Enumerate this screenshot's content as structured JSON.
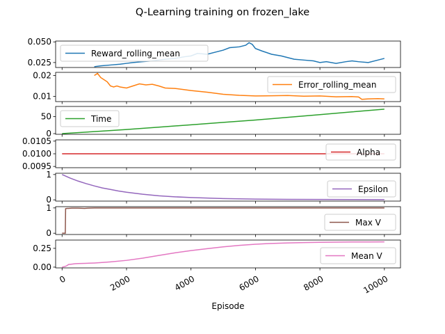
{
  "chart_data": {
    "type": "line",
    "title": "Q-Learning training on frozen_lake",
    "xlabel": "Episode",
    "xlim": [
      -200,
      10500
    ],
    "x_ticks": [
      "0",
      "2000",
      "4000",
      "6000",
      "8000",
      "10000"
    ],
    "x_tick_values": [
      0,
      2000,
      4000,
      6000,
      8000,
      10000
    ],
    "legend_placement": [
      "upper left",
      "upper right",
      "upper left",
      "upper right",
      "lower right",
      "lower right",
      "lower right"
    ],
    "panels": [
      {
        "name": "Reward_rolling_mean",
        "color": "#1f77b4",
        "ylim": [
          0.019,
          0.051
        ],
        "y_ticks": [
          "0.025",
          "0.050"
        ],
        "y_tick_values": [
          0.025,
          0.05
        ],
        "x": [
          1000,
          1200,
          1500,
          1800,
          2000,
          2200,
          2500,
          2800,
          3000,
          3200,
          3500,
          3800,
          4000,
          4200,
          4500,
          4800,
          5000,
          5200,
          5500,
          5700,
          5800,
          5900,
          6000,
          6200,
          6500,
          6800,
          7000,
          7200,
          7500,
          7800,
          8000,
          8200,
          8500,
          8800,
          9000,
          9200,
          9500,
          9800,
          10000
        ],
        "y": [
          0.02,
          0.021,
          0.022,
          0.023,
          0.024,
          0.025,
          0.026,
          0.027,
          0.028,
          0.029,
          0.03,
          0.032,
          0.033,
          0.036,
          0.035,
          0.038,
          0.04,
          0.043,
          0.044,
          0.046,
          0.049,
          0.047,
          0.042,
          0.039,
          0.035,
          0.033,
          0.031,
          0.029,
          0.028,
          0.027,
          0.025,
          0.026,
          0.024,
          0.026,
          0.027,
          0.026,
          0.025,
          0.028,
          0.03
        ]
      },
      {
        "name": "Error_rolling_mean",
        "color": "#ff7f0e",
        "ylim": [
          0.0075,
          0.0215
        ],
        "y_ticks": [
          "0.01",
          "0.02"
        ],
        "y_tick_values": [
          0.01,
          0.02
        ],
        "x": [
          1000,
          1100,
          1200,
          1300,
          1400,
          1500,
          1600,
          1700,
          1800,
          2000,
          2200,
          2400,
          2600,
          2800,
          3000,
          3200,
          3500,
          3800,
          4000,
          4500,
          5000,
          5500,
          6000,
          6500,
          7000,
          7500,
          8000,
          8500,
          9000,
          9200,
          9300,
          9500,
          9800,
          10000
        ],
        "y": [
          0.02,
          0.021,
          0.019,
          0.018,
          0.017,
          0.015,
          0.0145,
          0.015,
          0.0145,
          0.014,
          0.015,
          0.016,
          0.0155,
          0.0158,
          0.015,
          0.014,
          0.0138,
          0.0132,
          0.0128,
          0.012,
          0.011,
          0.0105,
          0.0102,
          0.0103,
          0.0104,
          0.0101,
          0.0102,
          0.0098,
          0.0099,
          0.0097,
          0.0086,
          0.0088,
          0.0089,
          0.0088
        ]
      },
      {
        "name": "Time",
        "color": "#2ca02c",
        "ylim": [
          -2,
          80
        ],
        "y_ticks": [
          "0",
          "50"
        ],
        "y_tick_values": [
          0,
          50
        ],
        "x": [
          0,
          1000,
          2000,
          3000,
          4000,
          5000,
          6000,
          7000,
          8000,
          9000,
          10000
        ],
        "y": [
          0,
          6,
          12,
          19,
          26,
          33,
          40,
          48,
          56,
          64,
          72
        ]
      },
      {
        "name": "Alpha",
        "color": "#d62728",
        "ylim": [
          0.00945,
          0.01055
        ],
        "y_ticks": [
          "0.0095",
          "0.0100",
          "0.0105"
        ],
        "y_tick_values": [
          0.0095,
          0.01,
          0.0105
        ],
        "x": [
          0,
          10000
        ],
        "y": [
          0.01,
          0.01
        ]
      },
      {
        "name": "Epsilon",
        "color": "#9467bd",
        "ylim": [
          -0.05,
          1.05
        ],
        "y_ticks": [
          "0",
          "1"
        ],
        "y_tick_values": [
          0,
          1
        ],
        "x": [
          0,
          250,
          500,
          750,
          1000,
          1250,
          1500,
          1750,
          2000,
          2500,
          3000,
          3500,
          4000,
          4500,
          5000,
          6000,
          7000,
          8000,
          9000,
          10000
        ],
        "y": [
          1.0,
          0.86,
          0.74,
          0.64,
          0.55,
          0.47,
          0.41,
          0.35,
          0.3,
          0.22,
          0.16,
          0.12,
          0.09,
          0.07,
          0.05,
          0.03,
          0.02,
          0.015,
          0.012,
          0.01
        ]
      },
      {
        "name": "Max V",
        "color": "#8c564b",
        "ylim": [
          -0.05,
          1.05
        ],
        "y_ticks": [
          "0",
          "1"
        ],
        "y_tick_values": [
          0,
          1
        ],
        "x": [
          0,
          100,
          110,
          150,
          200,
          300,
          500,
          700,
          800,
          1000,
          2000,
          4000,
          6000,
          8000,
          10000
        ],
        "y": [
          0,
          0,
          0.97,
          0.98,
          0.98,
          0.99,
          0.99,
          0.98,
          0.99,
          1.0,
          1.0,
          1.0,
          1.0,
          1.0,
          1.0
        ]
      },
      {
        "name": "Mean V",
        "color": "#e377c2",
        "ylim": [
          -0.01,
          0.36
        ],
        "y_ticks": [
          "0.00",
          "0.25"
        ],
        "y_tick_values": [
          0,
          0.25
        ],
        "x": [
          0,
          100,
          150,
          200,
          300,
          400,
          500,
          700,
          1000,
          1200,
          1500,
          2000,
          2500,
          3000,
          3500,
          4000,
          4500,
          5000,
          5500,
          6000,
          6500,
          7000,
          7500,
          8000,
          8500,
          9000,
          9500,
          10000
        ],
        "y": [
          0.0,
          0.01,
          0.02,
          0.035,
          0.04,
          0.045,
          0.048,
          0.05,
          0.055,
          0.06,
          0.07,
          0.09,
          0.12,
          0.155,
          0.19,
          0.22,
          0.245,
          0.27,
          0.29,
          0.305,
          0.315,
          0.322,
          0.327,
          0.33,
          0.332,
          0.334,
          0.335,
          0.336
        ]
      }
    ]
  }
}
